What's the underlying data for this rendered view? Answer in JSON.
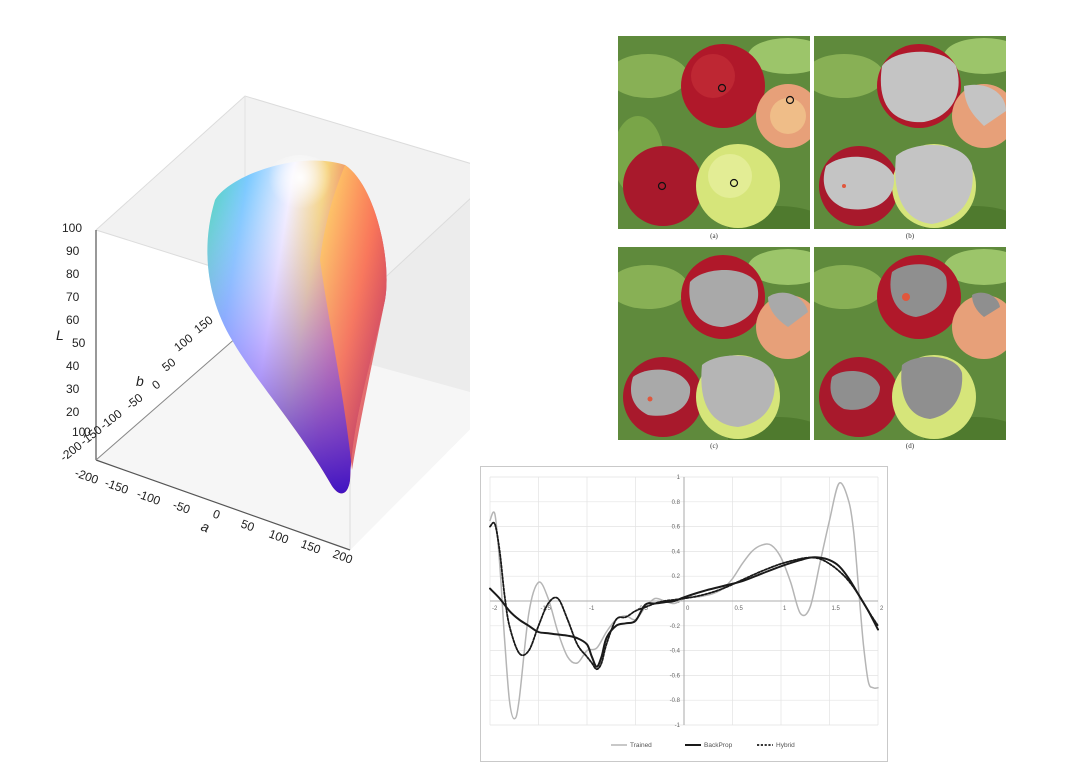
{
  "lab_figure": {
    "axis_L": "L",
    "axis_a": "a",
    "axis_b": "b",
    "L_ticks": [
      "100",
      "90",
      "80",
      "70",
      "60",
      "50",
      "40",
      "30",
      "20",
      "10",
      "0"
    ],
    "a_ticks": [
      "-200",
      "-150",
      "-100",
      "-50",
      "0",
      "50",
      "100",
      "150",
      "200"
    ],
    "b_ticks": [
      "150",
      "100",
      "50",
      "0",
      "-50",
      "-100",
      "-150",
      "-200"
    ]
  },
  "apple_panels": {
    "labels": [
      "(a)",
      "(b)",
      "(c)",
      "(d)"
    ]
  },
  "chart_data": {
    "type": "line",
    "x_ticks": [
      "-2",
      "-1.5",
      "-1",
      "-0.5",
      "0",
      "0.5",
      "1",
      "1.5",
      "2"
    ],
    "y_ticks": [
      "1",
      "0.8",
      "0.6",
      "0.4",
      "0.2",
      "0",
      "-0.2",
      "-0.4",
      "-0.6",
      "-0.8",
      "-1"
    ],
    "xlim": [
      -2,
      2
    ],
    "ylim": [
      -1,
      1
    ],
    "grid": true,
    "legend_position": "bottom",
    "series": [
      {
        "name": "Trained",
        "color": "#b5b5b5",
        "style": "solid",
        "x": [
          -2,
          -1.95,
          -1.9,
          -1.85,
          -1.8,
          -1.75,
          -1.7,
          -1.6,
          -1.5,
          -1.4,
          -1.3,
          -1.2,
          -1.1,
          -1.0,
          -0.9,
          -0.8,
          -0.7,
          -0.6,
          -0.5,
          -0.4,
          -0.3,
          -0.2,
          -0.1,
          0,
          0.1,
          0.2,
          0.3,
          0.4,
          0.5,
          0.6,
          0.7,
          0.8,
          0.9,
          1.0,
          1.1,
          1.2,
          1.3,
          1.4,
          1.5,
          1.6,
          1.7,
          1.75,
          1.8,
          1.85,
          1.9,
          1.95,
          2.0
        ],
        "y": [
          0.65,
          0.7,
          0.3,
          -0.3,
          -0.8,
          -0.95,
          -0.8,
          -0.1,
          0.15,
          0.02,
          -0.25,
          -0.45,
          -0.5,
          -0.4,
          -0.38,
          -0.25,
          -0.15,
          -0.12,
          -0.15,
          -0.05,
          0.02,
          0.0,
          -0.02,
          0.02,
          0.03,
          0.04,
          0.06,
          0.1,
          0.18,
          0.3,
          0.4,
          0.45,
          0.45,
          0.35,
          0.15,
          -0.1,
          -0.05,
          0.3,
          0.65,
          0.95,
          0.8,
          0.55,
          0.1,
          -0.35,
          -0.65,
          -0.7,
          -0.7
        ]
      },
      {
        "name": "BackProp",
        "color": "#1a1a1a",
        "style": "solid",
        "x": [
          -2,
          -1.9,
          -1.8,
          -1.7,
          -1.6,
          -1.5,
          -1.4,
          -1.3,
          -1.2,
          -1.1,
          -1.0,
          -0.95,
          -0.9,
          -0.85,
          -0.8,
          -0.7,
          -0.6,
          -0.5,
          -0.4,
          -0.3,
          -0.2,
          -0.1,
          0,
          0.2,
          0.4,
          0.6,
          0.8,
          1.0,
          1.2,
          1.3,
          1.4,
          1.5,
          1.6,
          1.7,
          1.8,
          1.9,
          2.0
        ],
        "y": [
          0.1,
          0.02,
          -0.08,
          -0.15,
          -0.2,
          -0.25,
          -0.26,
          -0.27,
          -0.28,
          -0.3,
          -0.35,
          -0.45,
          -0.53,
          -0.45,
          -0.3,
          -0.2,
          -0.18,
          -0.16,
          -0.03,
          -0.02,
          -0.01,
          0.0,
          0.03,
          0.08,
          0.12,
          0.16,
          0.22,
          0.28,
          0.33,
          0.35,
          0.35,
          0.33,
          0.28,
          0.18,
          0.05,
          -0.08,
          -0.23
        ]
      },
      {
        "name": "Hybrid",
        "color": "#1a1a1a",
        "style": "dotted",
        "x": [
          -2,
          -1.95,
          -1.9,
          -1.85,
          -1.8,
          -1.7,
          -1.6,
          -1.5,
          -1.4,
          -1.3,
          -1.2,
          -1.1,
          -1.0,
          -0.95,
          -0.9,
          -0.85,
          -0.8,
          -0.7,
          -0.6,
          -0.5,
          -0.4,
          -0.3,
          -0.2,
          -0.1,
          0,
          0.2,
          0.4,
          0.6,
          0.8,
          1.0,
          1.2,
          1.3,
          1.4,
          1.5,
          1.6,
          1.7,
          1.8,
          1.9,
          2.0
        ],
        "y": [
          0.6,
          0.62,
          0.4,
          0.05,
          -0.2,
          -0.42,
          -0.4,
          -0.2,
          -0.02,
          0.02,
          -0.15,
          -0.35,
          -0.45,
          -0.5,
          -0.55,
          -0.5,
          -0.35,
          -0.15,
          -0.13,
          -0.08,
          -0.05,
          -0.02,
          0.0,
          0.01,
          0.02,
          0.05,
          0.1,
          0.17,
          0.24,
          0.3,
          0.34,
          0.35,
          0.34,
          0.3,
          0.24,
          0.16,
          0.05,
          -0.08,
          -0.2
        ]
      }
    ]
  }
}
